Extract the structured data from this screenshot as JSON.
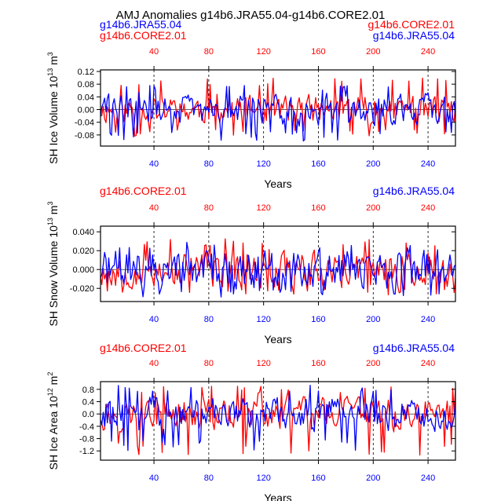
{
  "figure": {
    "title": "AMJ Anomalies g14b6.JRA55.04-g14b6.CORE2.01",
    "colors": {
      "core": "#ff0000",
      "jra": "#0000ff",
      "axis": "#000000",
      "grid": "#000000"
    }
  },
  "chart_data": [
    {
      "type": "line",
      "title": "",
      "ylabel_main": "SH Ice Volume 10",
      "ylabel_exp": "13",
      "ylabel_unit": " m",
      "ylabel_unit_exp": "3",
      "xlabel": "Years",
      "legend_left": [
        "g14b6.JRA55.04",
        "g14b6.CORE2.01"
      ],
      "legend_right": [
        "g14b6.CORE2.01",
        "g14b6.JRA55.04"
      ],
      "xlim": [
        1,
        260
      ],
      "ylim": [
        -0.115,
        0.125
      ],
      "yticks": [
        -0.08,
        -0.04,
        0.0,
        0.04,
        0.08,
        0.12
      ],
      "ytick_labels": [
        "-0.08",
        "-0.04",
        "0.00",
        "0.04",
        "0.08",
        "0.12"
      ],
      "xticks": [
        40,
        80,
        120,
        160,
        200,
        240
      ],
      "xtick_labels": [
        "40",
        "80",
        "120",
        "160",
        "200",
        "240"
      ],
      "dashed_x": [
        40,
        80,
        120,
        160,
        200,
        240
      ],
      "series": [
        {
          "name": "g14b6.CORE2.01",
          "color": "#ff0000",
          "seed": 11,
          "amp": 0.028,
          "trough": -0.09,
          "peak": 0.1,
          "lo": -0.105,
          "hi": 0.118
        },
        {
          "name": "g14b6.JRA55.04",
          "color": "#0000ff",
          "seed": 29,
          "amp": 0.03,
          "trough": -0.1,
          "peak": 0.08,
          "lo": -0.11,
          "hi": 0.1
        }
      ]
    },
    {
      "type": "line",
      "title": "",
      "ylabel_main": "SH Snow Volume 10",
      "ylabel_exp": "13",
      "ylabel_unit": " m",
      "ylabel_unit_exp": "3",
      "xlabel": "Years",
      "legend_left": [
        "g14b6.CORE2.01"
      ],
      "legend_right": [
        "g14b6.JRA55.04"
      ],
      "xlim": [
        1,
        260
      ],
      "ylim": [
        -0.034,
        0.046
      ],
      "yticks": [
        -0.02,
        0.0,
        0.02,
        0.04
      ],
      "ytick_labels": [
        "-0.020",
        "0.000",
        "0.020",
        "0.040"
      ],
      "xticks": [
        40,
        80,
        120,
        160,
        200,
        240
      ],
      "xtick_labels": [
        "40",
        "80",
        "120",
        "160",
        "200",
        "240"
      ],
      "dashed_x": [
        40,
        80,
        120,
        160,
        200,
        240
      ],
      "series": [
        {
          "name": "g14b6.CORE2.01",
          "color": "#ff0000",
          "seed": 53,
          "amp": 0.012,
          "trough": -0.028,
          "peak": 0.033,
          "lo": -0.032,
          "hi": 0.038
        },
        {
          "name": "g14b6.JRA55.04",
          "color": "#0000ff",
          "seed": 71,
          "amp": 0.013,
          "trough": -0.03,
          "peak": 0.03,
          "lo": -0.032,
          "hi": 0.036
        }
      ]
    },
    {
      "type": "line",
      "title": "",
      "ylabel_main": "SH Ice Area 10",
      "ylabel_exp": "12",
      "ylabel_unit": " m",
      "ylabel_unit_exp": "2",
      "xlabel": "Years",
      "legend_left": [
        "g14b6.CORE2.01"
      ],
      "legend_right": [
        "g14b6.JRA55.04"
      ],
      "xlim": [
        1,
        260
      ],
      "ylim": [
        -1.5,
        1.05
      ],
      "yticks": [
        -1.2,
        -0.8,
        -0.4,
        0.0,
        0.4,
        0.8
      ],
      "ytick_labels": [
        "-1.2",
        "-0.8",
        "-0.4",
        "0.0",
        "0.4",
        "0.8"
      ],
      "xticks": [
        40,
        80,
        120,
        160,
        200,
        240
      ],
      "xtick_labels": [
        "40",
        "80",
        "120",
        "160",
        "200",
        "240"
      ],
      "dashed_x": [
        40,
        80,
        120,
        160,
        200,
        240
      ],
      "series": [
        {
          "name": "g14b6.CORE2.01",
          "color": "#ff0000",
          "seed": 97,
          "amp": 0.32,
          "trough": -1.35,
          "peak": 0.9,
          "lo": -1.45,
          "hi": 1.0
        },
        {
          "name": "g14b6.JRA55.04",
          "color": "#0000ff",
          "seed": 113,
          "amp": 0.33,
          "trough": -1.2,
          "peak": 0.95,
          "lo": -1.3,
          "hi": 1.0
        }
      ]
    }
  ]
}
